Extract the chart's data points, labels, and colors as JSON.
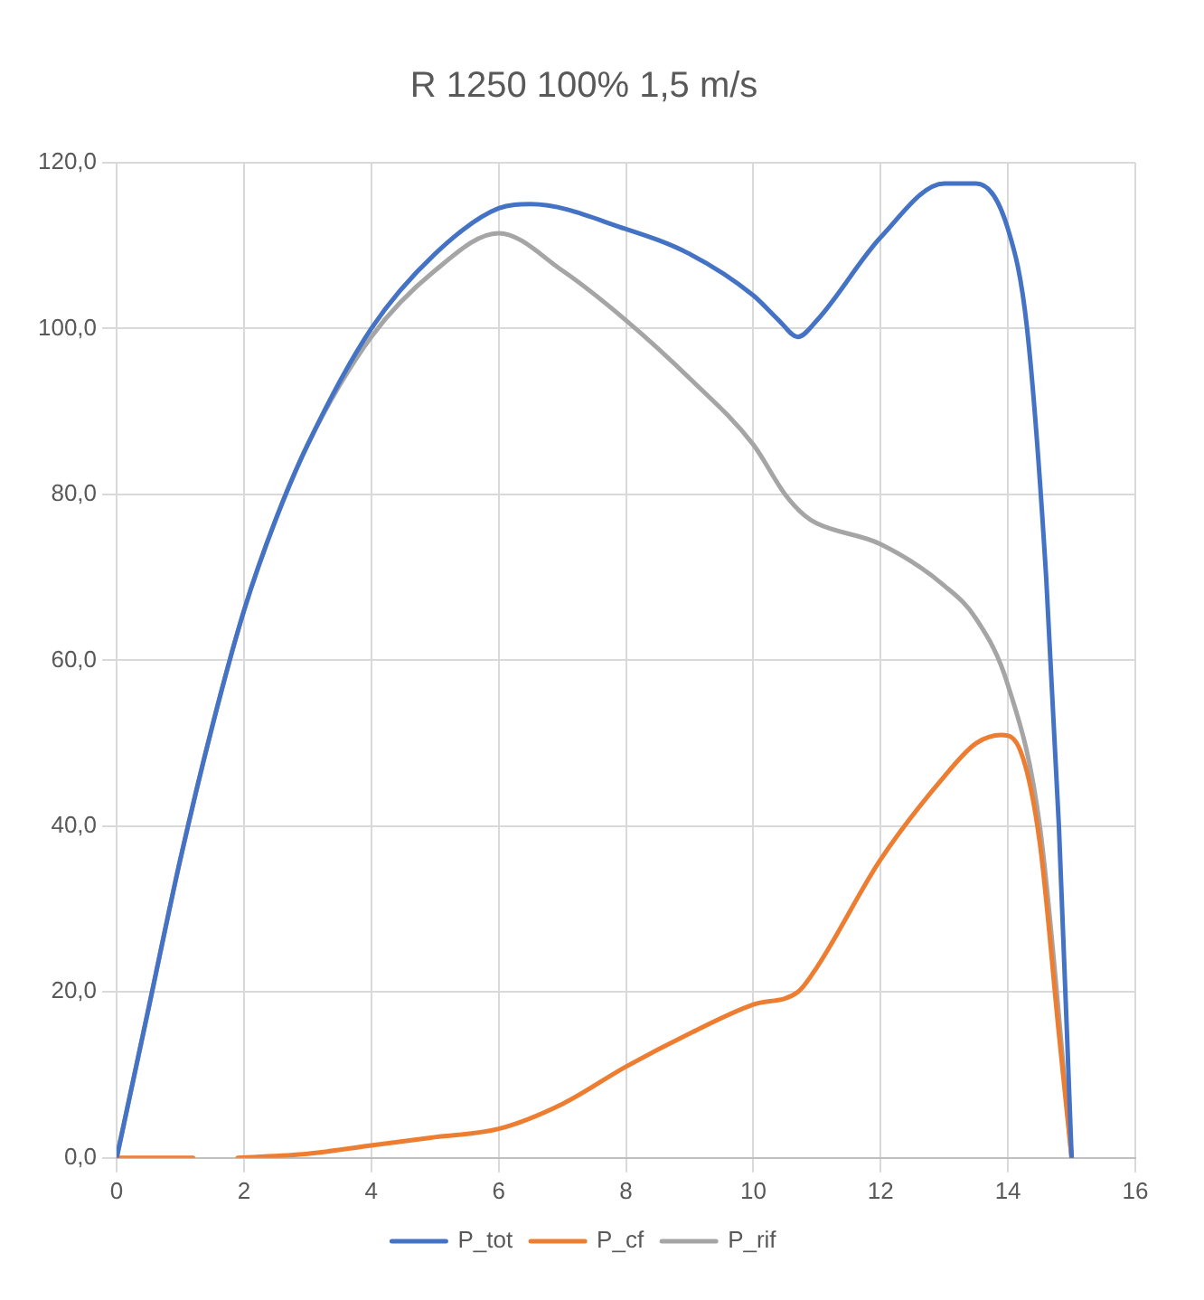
{
  "chart_data": {
    "type": "line",
    "title": "R 1250 100% 1,5 m/s",
    "series": [
      {
        "name": "P_tot",
        "color": "#4472c4",
        "x": [
          0,
          0.5,
          1,
          1.5,
          2,
          2.5,
          3,
          4,
          5,
          6,
          6.5,
          8,
          9,
          10,
          10.4,
          10.7,
          11,
          12,
          13,
          13.5,
          14,
          14.3,
          14.6,
          14.8,
          15
        ],
        "values": [
          0,
          18,
          36,
          52,
          66,
          77,
          86,
          100,
          109,
          114.5,
          115,
          112,
          109,
          104,
          101,
          99,
          101,
          111,
          117.5,
          117.5,
          112,
          100,
          70,
          40,
          0
        ]
      },
      {
        "name": "P_cf",
        "color": "#ed7d31",
        "x": [
          0,
          1.2,
          1.5,
          1.9,
          3,
          4,
          5,
          6,
          7,
          8,
          9,
          10,
          10.7,
          11,
          12,
          13,
          13.5,
          13.9,
          14.2,
          14.5,
          14.8,
          15
        ],
        "values": [
          0,
          0,
          null,
          0,
          0.5,
          1.5,
          2.5,
          3.5,
          6.5,
          11,
          15,
          18.5,
          20,
          23,
          36,
          46,
          50,
          51,
          49,
          38,
          15,
          0
        ]
      },
      {
        "name": "P_rif",
        "color": "#a5a5a5",
        "x": [
          0,
          0.5,
          1,
          1.5,
          2,
          2.5,
          3,
          4,
          5,
          6,
          7,
          8,
          9,
          10,
          10.5,
          10.8,
          11,
          12,
          13,
          13.5,
          14,
          14.5,
          15
        ],
        "values": [
          0,
          18,
          36,
          52,
          66,
          77,
          86,
          99,
          107,
          111.5,
          107,
          101,
          94,
          86,
          80,
          77.5,
          76.5,
          74,
          69,
          65,
          57,
          40,
          0
        ]
      }
    ],
    "xlim": [
      0,
      16
    ],
    "xticks": [
      0,
      2,
      4,
      6,
      8,
      10,
      12,
      14,
      16
    ],
    "ylim": [
      0,
      120
    ],
    "yticks": [
      {
        "value": 0,
        "label": "0,0"
      },
      {
        "value": 20,
        "label": "20,0"
      },
      {
        "value": 40,
        "label": "40,0"
      },
      {
        "value": 60,
        "label": "60,0"
      },
      {
        "value": 80,
        "label": "80,0"
      },
      {
        "value": 100,
        "label": "100,0"
      },
      {
        "value": 120,
        "label": "120,0"
      }
    ],
    "grid": true,
    "legend": "bottom",
    "marker": "none",
    "line_style": "solid"
  }
}
